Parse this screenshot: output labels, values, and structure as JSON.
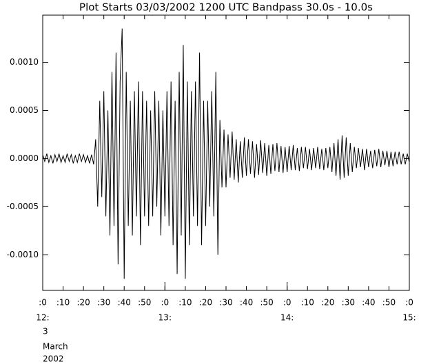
{
  "chart_data": {
    "type": "line",
    "title": "Plot Starts 03/03/2002 1200 UTC Bandpass 30.0s - 10.0s",
    "date_label": [
      "3",
      "March",
      "2002"
    ],
    "xlim": [
      0,
      180
    ],
    "ylim": [
      -0.00137,
      0.00149
    ],
    "yticks": [
      {
        "value": 0.001,
        "label": "0.0010"
      },
      {
        "value": 0.0005,
        "label": "0.0005"
      },
      {
        "value": 0,
        "label": "0.0000"
      },
      {
        "value": -0.0005,
        "label": "-0.0005"
      },
      {
        "value": -0.001,
        "label": "-0.0010"
      }
    ],
    "xticks": [
      {
        "value": 0,
        "label": ":0"
      },
      {
        "value": 10,
        "label": ":10"
      },
      {
        "value": 20,
        "label": ":20"
      },
      {
        "value": 30,
        "label": ":30"
      },
      {
        "value": 40,
        "label": ":40"
      },
      {
        "value": 50,
        "label": ":50"
      },
      {
        "value": 60,
        "label": ":0"
      },
      {
        "value": 70,
        "label": ":10"
      },
      {
        "value": 80,
        "label": ":20"
      },
      {
        "value": 90,
        "label": ":30"
      },
      {
        "value": 100,
        "label": ":40"
      },
      {
        "value": 110,
        "label": ":50"
      },
      {
        "value": 120,
        "label": ":0"
      },
      {
        "value": 130,
        "label": ":10"
      },
      {
        "value": 140,
        "label": ":20"
      },
      {
        "value": 150,
        "label": ":30"
      },
      {
        "value": 160,
        "label": ":40"
      },
      {
        "value": 170,
        "label": ":50"
      },
      {
        "value": 180,
        "label": ":0"
      }
    ],
    "xticks_major": [
      {
        "value": 0,
        "label": "12:"
      },
      {
        "value": 60,
        "label": "13:"
      },
      {
        "value": 120,
        "label": "14:"
      },
      {
        "value": 180,
        "label": "15:"
      }
    ],
    "color": "#000000",
    "x": [
      0,
      1,
      2,
      3,
      4,
      5,
      6,
      7,
      8,
      9,
      10,
      11,
      12,
      13,
      14,
      15,
      16,
      17,
      18,
      19,
      20,
      21,
      22,
      23,
      24,
      25,
      26,
      27,
      28,
      29,
      30,
      31,
      32,
      33,
      34,
      35,
      36,
      37,
      38,
      39,
      40,
      41,
      42,
      43,
      44,
      45,
      46,
      47,
      48,
      49,
      50,
      51,
      52,
      53,
      54,
      55,
      56,
      57,
      58,
      59,
      60,
      61,
      62,
      63,
      64,
      65,
      66,
      67,
      68,
      69,
      70,
      71,
      72,
      73,
      74,
      75,
      76,
      77,
      78,
      79,
      80,
      81,
      82,
      83,
      84,
      85,
      86,
      87,
      88,
      89,
      90,
      91,
      92,
      93,
      94,
      95,
      96,
      97,
      98,
      99,
      100,
      101,
      102,
      103,
      104,
      105,
      106,
      107,
      108,
      109,
      110,
      111,
      112,
      113,
      114,
      115,
      116,
      117,
      118,
      119,
      120,
      121,
      122,
      123,
      124,
      125,
      126,
      127,
      128,
      129,
      130,
      131,
      132,
      133,
      134,
      135,
      136,
      137,
      138,
      139,
      140,
      141,
      142,
      143,
      144,
      145,
      146,
      147,
      148,
      149,
      150,
      151,
      152,
      153,
      154,
      155,
      156,
      157,
      158,
      159,
      160,
      161,
      162,
      163,
      164,
      165,
      166,
      167,
      168,
      169,
      170,
      171,
      172,
      173,
      174,
      175,
      176,
      177,
      178,
      179,
      180
    ],
    "values": [
      4e-05,
      -3e-05,
      5e-05,
      -4e-05,
      3e-05,
      -5e-05,
      4e-05,
      -3e-05,
      5e-05,
      -4e-05,
      3e-05,
      -4e-05,
      5e-05,
      -3e-05,
      4e-05,
      -5e-05,
      3e-05,
      -4e-05,
      5e-05,
      -3e-05,
      4e-05,
      -4e-05,
      3e-05,
      -5e-05,
      4e-05,
      -6e-05,
      0.0002,
      -0.0005,
      0.0006,
      -0.0004,
      0.0007,
      -0.0006,
      0.0005,
      -0.0008,
      0.0009,
      -0.0007,
      0.0011,
      -0.0011,
      0.0008,
      0.00135,
      -0.00125,
      0.0009,
      -0.0007,
      0.0006,
      -0.0008,
      0.0007,
      -0.0006,
      0.0008,
      -0.0009,
      0.0007,
      -0.0006,
      0.0006,
      -0.0007,
      0.0005,
      -0.0006,
      0.0007,
      -0.0005,
      0.0006,
      -0.0008,
      0.0005,
      -0.0006,
      0.0007,
      -0.0007,
      0.0008,
      -0.0009,
      0.0006,
      -0.0012,
      0.0009,
      -0.0008,
      0.00118,
      -0.00125,
      0.0008,
      -0.0009,
      0.0007,
      -0.0006,
      0.0008,
      -0.0007,
      0.0011,
      -0.0009,
      0.0006,
      -0.0007,
      0.0006,
      -0.0005,
      0.0007,
      -0.0006,
      0.0009,
      -0.001,
      0.0004,
      -0.0003,
      0.0003,
      -0.0003,
      0.00025,
      -0.0002,
      0.00028,
      -0.00022,
      0.0002,
      -0.00025,
      0.00018,
      -0.0002,
      0.00022,
      -0.00018,
      0.0002,
      -0.00016,
      0.00018,
      -0.0002,
      0.00015,
      -0.00017,
      0.00019,
      -0.00015,
      0.00016,
      -0.00018,
      0.00014,
      -0.00016,
      0.00015,
      -0.00013,
      0.00016,
      -0.00014,
      0.00013,
      -0.00015,
      0.00012,
      -0.00014,
      0.00013,
      -0.00012,
      0.00014,
      -0.00012,
      0.00011,
      -0.00013,
      0.00012,
      -0.0001,
      0.00012,
      -0.00011,
      0.0001,
      -0.00012,
      0.00011,
      -0.0001,
      0.00012,
      -0.00011,
      0.0001,
      -0.00012,
      0.00011,
      -0.0001,
      0.00012,
      -0.00014,
      0.00016,
      -0.00018,
      0.0002,
      -0.00022,
      0.00024,
      -0.0002,
      0.00022,
      -0.00018,
      0.00016,
      -0.00014,
      0.00012,
      -0.0001,
      0.00011,
      -9e-05,
      0.0001,
      -0.00012,
      0.0001,
      -9e-05,
      8e-05,
      -0.0001,
      9e-05,
      -8e-05,
      0.0001,
      -9e-05,
      8e-05,
      -7e-05,
      8e-05,
      -9e-05,
      7e-05,
      -8e-05,
      7e-05,
      -6e-05,
      7e-05,
      -6e-05,
      5e-05,
      -6e-05,
      5e-05,
      -4e-05
    ]
  }
}
